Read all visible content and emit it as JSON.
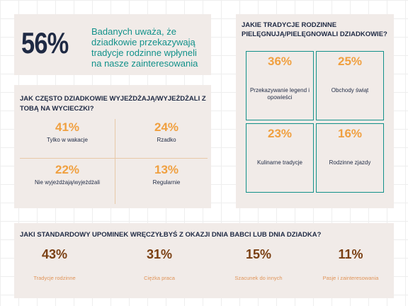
{
  "headline": {
    "percent": "56%",
    "text": "Badanych uważa, że dziadkowie przekazywają tradycje rodzinne wpłyneli na nasze zainteresowania"
  },
  "traditions": {
    "title": "JAKIE TRADYCJE RODZINNE PIELĘGNUJĄ/PIELĘGNOWALI DZIADKOWIE?",
    "items": [
      {
        "percent": "36%",
        "label": "Przekazywanie legend i opowieści"
      },
      {
        "percent": "25%",
        "label": "Obchody świąt"
      },
      {
        "percent": "23%",
        "label": "Kulinarne tradycje"
      },
      {
        "percent": "16%",
        "label": "Rodzinne zjazdy"
      }
    ]
  },
  "trips": {
    "title": "JAK CZĘSTO DZIADKOWIE WYJEŻDŻAJĄ/WYJEŻDŻALI Z TOBĄ NA WYCIECZKI?",
    "items": [
      {
        "percent": "41%",
        "label": "Tylko w wakacje"
      },
      {
        "percent": "24%",
        "label": "Rzadko"
      },
      {
        "percent": "22%",
        "label": "Nie wyjeżdżają/wyjeżdżali"
      },
      {
        "percent": "13%",
        "label": "Regularnie"
      }
    ]
  },
  "gifts": {
    "title": "JAKI STANDARDOWY UPOMINEK WRĘCZYŁBYŚ Z OKAZJI DNIA BABCI LUB DNIA DZIADKA?",
    "items": [
      {
        "percent": "43%",
        "label": "Tradycje rodzinne"
      },
      {
        "percent": "31%",
        "label": "Ciężka praca"
      },
      {
        "percent": "15%",
        "label": "Szacunek do innych"
      },
      {
        "percent": "11%",
        "label": "Pasje i zainteresowania"
      }
    ]
  },
  "colors": {
    "navy": "#1f2a44",
    "teal": "#12918a",
    "orange": "#f0a040",
    "brown": "#7a3f12",
    "panel": "#f1ebe8"
  }
}
